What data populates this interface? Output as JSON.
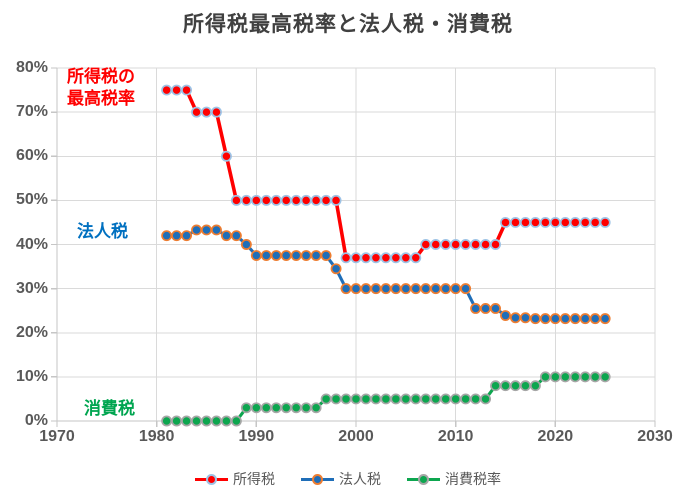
{
  "title_color": "#404040",
  "axis_text_color": "#595959",
  "gridline_color": "#DADADA",
  "axis_line_color": "#C6C6C6",
  "annotations": {
    "income_line1": "所得税の",
    "income_line2": "最高税率",
    "income_color": "#FF0000",
    "corporate": "法人税",
    "corporate_color": "#0070C0",
    "consumption": "消費税",
    "consumption_color": "#00A550"
  },
  "chart_data": {
    "type": "line",
    "title": "所得税最高税率と法人税・消費税",
    "xlabel": "",
    "ylabel": "",
    "x_axis": {
      "min": 1970,
      "max": 2030,
      "ticks": [
        1970,
        1980,
        1990,
        2000,
        2010,
        2020,
        2030
      ],
      "tick_labels": [
        "1970",
        "1980",
        "1990",
        "2000",
        "2010",
        "2020",
        "2030"
      ]
    },
    "y_axis": {
      "min": 0,
      "max": 80,
      "ticks": [
        0,
        10,
        20,
        30,
        40,
        50,
        60,
        70,
        80
      ],
      "tick_labels": [
        "0%",
        "10%",
        "20%",
        "30%",
        "40%",
        "50%",
        "60%",
        "70%",
        "80%"
      ]
    },
    "grid": true,
    "legend_position": "bottom-center",
    "series": [
      {
        "name": "消費税率",
        "color": "#0DA64F",
        "marker_border": "#A6A6A6",
        "points": [
          [
            1981,
            0
          ],
          [
            1982,
            0
          ],
          [
            1983,
            0
          ],
          [
            1984,
            0
          ],
          [
            1985,
            0
          ],
          [
            1986,
            0
          ],
          [
            1987,
            0
          ],
          [
            1988,
            0
          ],
          [
            1989,
            3
          ],
          [
            1990,
            3
          ],
          [
            1991,
            3
          ],
          [
            1992,
            3
          ],
          [
            1993,
            3
          ],
          [
            1994,
            3
          ],
          [
            1995,
            3
          ],
          [
            1996,
            3
          ],
          [
            1997,
            5
          ],
          [
            1998,
            5
          ],
          [
            1999,
            5
          ],
          [
            2000,
            5
          ],
          [
            2001,
            5
          ],
          [
            2002,
            5
          ],
          [
            2003,
            5
          ],
          [
            2004,
            5
          ],
          [
            2005,
            5
          ],
          [
            2006,
            5
          ],
          [
            2007,
            5
          ],
          [
            2008,
            5
          ],
          [
            2009,
            5
          ],
          [
            2010,
            5
          ],
          [
            2011,
            5
          ],
          [
            2012,
            5
          ],
          [
            2013,
            5
          ],
          [
            2014,
            8
          ],
          [
            2015,
            8
          ],
          [
            2016,
            8
          ],
          [
            2017,
            8
          ],
          [
            2018,
            8
          ],
          [
            2019,
            10
          ],
          [
            2020,
            10
          ],
          [
            2021,
            10
          ],
          [
            2022,
            10
          ],
          [
            2023,
            10
          ],
          [
            2024,
            10
          ],
          [
            2025,
            10
          ]
        ]
      },
      {
        "name": "法人税",
        "color": "#1F6EB8",
        "marker_border": "#ED7D31",
        "points": [
          [
            1981,
            42
          ],
          [
            1982,
            42
          ],
          [
            1983,
            42
          ],
          [
            1984,
            43.3
          ],
          [
            1985,
            43.3
          ],
          [
            1986,
            43.3
          ],
          [
            1987,
            42
          ],
          [
            1988,
            42
          ],
          [
            1989,
            40
          ],
          [
            1990,
            37.5
          ],
          [
            1991,
            37.5
          ],
          [
            1992,
            37.5
          ],
          [
            1993,
            37.5
          ],
          [
            1994,
            37.5
          ],
          [
            1995,
            37.5
          ],
          [
            1996,
            37.5
          ],
          [
            1997,
            37.5
          ],
          [
            1998,
            34.5
          ],
          [
            1999,
            30
          ],
          [
            2000,
            30
          ],
          [
            2001,
            30
          ],
          [
            2002,
            30
          ],
          [
            2003,
            30
          ],
          [
            2004,
            30
          ],
          [
            2005,
            30
          ],
          [
            2006,
            30
          ],
          [
            2007,
            30
          ],
          [
            2008,
            30
          ],
          [
            2009,
            30
          ],
          [
            2010,
            30
          ],
          [
            2011,
            30
          ],
          [
            2012,
            25.5
          ],
          [
            2013,
            25.5
          ],
          [
            2014,
            25.5
          ],
          [
            2015,
            23.9
          ],
          [
            2016,
            23.4
          ],
          [
            2017,
            23.4
          ],
          [
            2018,
            23.2
          ],
          [
            2019,
            23.2
          ],
          [
            2020,
            23.2
          ],
          [
            2021,
            23.2
          ],
          [
            2022,
            23.2
          ],
          [
            2023,
            23.2
          ],
          [
            2024,
            23.2
          ],
          [
            2025,
            23.2
          ]
        ]
      },
      {
        "name": "所得税",
        "color": "#FF0000",
        "marker_border": "#9DC3E6",
        "points": [
          [
            1981,
            75
          ],
          [
            1982,
            75
          ],
          [
            1983,
            75
          ],
          [
            1984,
            70
          ],
          [
            1985,
            70
          ],
          [
            1986,
            70
          ],
          [
            1987,
            60
          ],
          [
            1988,
            50
          ],
          [
            1989,
            50
          ],
          [
            1990,
            50
          ],
          [
            1991,
            50
          ],
          [
            1992,
            50
          ],
          [
            1993,
            50
          ],
          [
            1994,
            50
          ],
          [
            1995,
            50
          ],
          [
            1996,
            50
          ],
          [
            1997,
            50
          ],
          [
            1998,
            50
          ],
          [
            1999,
            37
          ],
          [
            2000,
            37
          ],
          [
            2001,
            37
          ],
          [
            2002,
            37
          ],
          [
            2003,
            37
          ],
          [
            2004,
            37
          ],
          [
            2005,
            37
          ],
          [
            2006,
            37
          ],
          [
            2007,
            40
          ],
          [
            2008,
            40
          ],
          [
            2009,
            40
          ],
          [
            2010,
            40
          ],
          [
            2011,
            40
          ],
          [
            2012,
            40
          ],
          [
            2013,
            40
          ],
          [
            2014,
            40
          ],
          [
            2015,
            45
          ],
          [
            2016,
            45
          ],
          [
            2017,
            45
          ],
          [
            2018,
            45
          ],
          [
            2019,
            45
          ],
          [
            2020,
            45
          ],
          [
            2021,
            45
          ],
          [
            2022,
            45
          ],
          [
            2023,
            45
          ],
          [
            2024,
            45
          ],
          [
            2025,
            45
          ]
        ]
      }
    ],
    "legend_order": [
      "所得税",
      "法人税",
      "消費税率"
    ]
  }
}
